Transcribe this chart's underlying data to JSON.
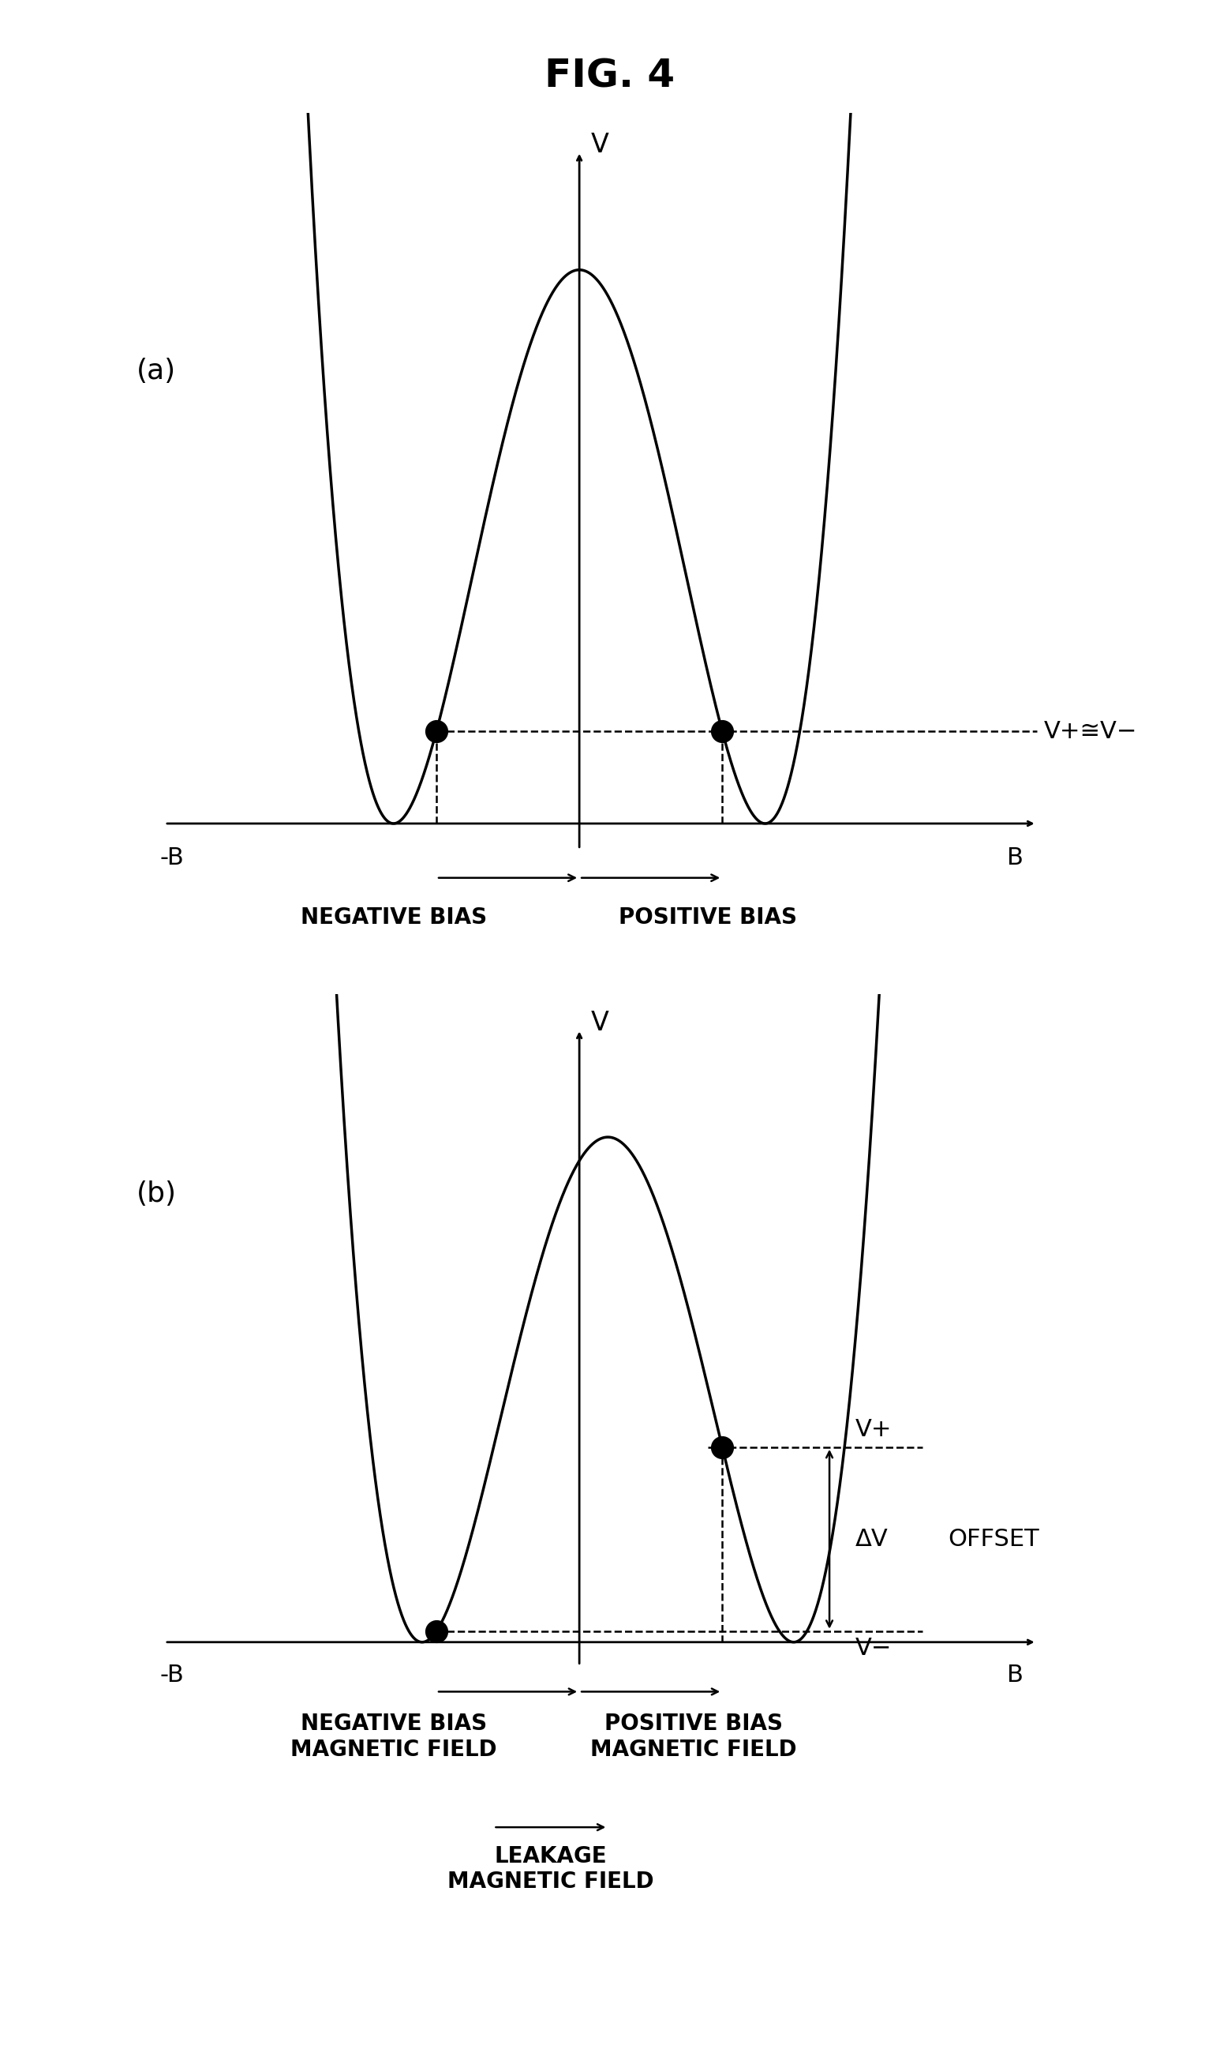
{
  "title": "FIG. 4",
  "title_fontsize": 36,
  "fig_width": 15.46,
  "fig_height": 25.95,
  "background_color": "#ffffff",
  "panel_a_label": "(a)",
  "panel_b_label": "(b)",
  "v_label": "V",
  "b_pos_label": "B",
  "b_neg_label": "-B",
  "neg_bias_label": "NEGATIVE BIAS",
  "pos_bias_label": "POSITIVE BIAS",
  "neg_bias_mag_label": "NEGATIVE BIAS\nMAGNETIC FIELD",
  "pos_bias_mag_label": "POSITIVE BIAS\nMAGNETIC FIELD",
  "leakage_label": "LEAKAGE\nMAGNETIC FIELD",
  "v_approx_label": "V+≅V−",
  "vplus_label": "V+",
  "vminus_label": "V−",
  "delta_v_label": "ΔV",
  "offset_label": "OFFSET",
  "font_size_labels": 22,
  "font_size_axis_labels": 24,
  "font_size_panel": 26,
  "font_size_bias": 20
}
